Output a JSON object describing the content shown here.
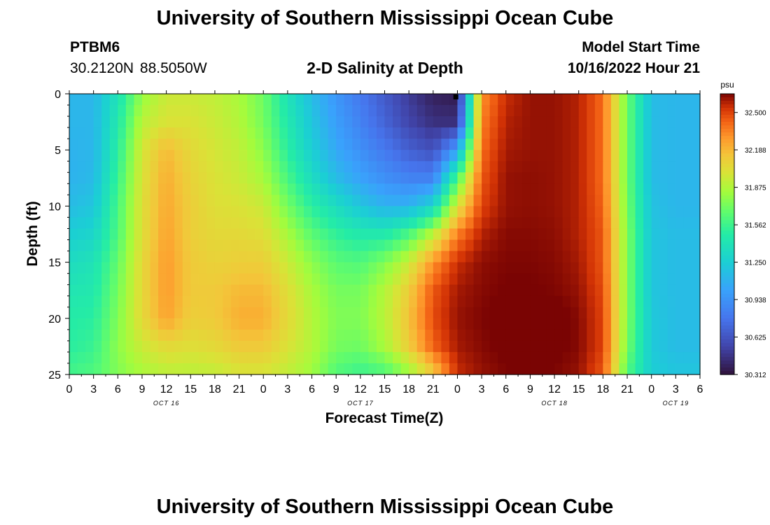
{
  "header": {
    "title": "University of Southern Mississippi Ocean Cube",
    "station_id": "PTBM6",
    "station_coords": "30.2120N  88.5050W",
    "plot_title": "2-D Salinity at Depth",
    "start_label": "Model Start Time",
    "start_value": "10/16/2022 Hour 21"
  },
  "footer": {
    "title": "University of Southern Mississippi Ocean Cube"
  },
  "chart_data": {
    "type": "heatmap",
    "title": "2-D Salinity at Depth",
    "xlabel": "Forecast Time(Z)",
    "ylabel": "Depth (ft)",
    "x_unit": "hours from 2022-10-16 00Z",
    "xlim": [
      0,
      78
    ],
    "ylim": [
      0,
      25
    ],
    "y_inverted": true,
    "x_tick_labels": [
      "0",
      "3",
      "6",
      "9",
      "12",
      "15",
      "18",
      "21",
      "0",
      "3",
      "6",
      "9",
      "12",
      "15",
      "18",
      "21",
      "0",
      "3",
      "6",
      "9",
      "12",
      "15",
      "18",
      "21",
      "0",
      "3",
      "6"
    ],
    "y_ticks": [
      0,
      5,
      10,
      15,
      20,
      25
    ],
    "date_labels": [
      {
        "text": "OCT 16",
        "hour": 12
      },
      {
        "text": "OCT 17",
        "hour": 36
      },
      {
        "text": "OCT 18",
        "hour": 60
      },
      {
        "text": "OCT 19",
        "hour": 75
      }
    ],
    "current_time_hour": 47.8,
    "colorbar": {
      "unit": "psu",
      "min": 30.312,
      "max": 32.656,
      "tick_values": [
        "32.500",
        "32.188",
        "31.875",
        "31.562",
        "31.250",
        "30.938",
        "30.625",
        "30.312"
      ],
      "colormap": "turbo"
    },
    "value_grid_desc": "salinity psu at depth rows 0,2.5,...,25 ft and hours 0,3,...,78",
    "y_samples": [
      0,
      2.5,
      5,
      7.5,
      10,
      12.5,
      15,
      17.5,
      20,
      22.5,
      25
    ],
    "x_samples": [
      0,
      3,
      6,
      9,
      12,
      15,
      18,
      21,
      24,
      27,
      30,
      33,
      36,
      39,
      42,
      45,
      48,
      51,
      54,
      57,
      60,
      63,
      66,
      69,
      72,
      75,
      78
    ],
    "values": [
      [
        31.12,
        31.12,
        31.4,
        31.8,
        31.95,
        31.95,
        31.92,
        31.85,
        31.7,
        31.4,
        31.15,
        30.95,
        30.8,
        30.65,
        30.5,
        30.38,
        30.35,
        32.3,
        32.55,
        32.62,
        32.62,
        32.58,
        32.4,
        31.7,
        31.15,
        31.12,
        31.12
      ],
      [
        31.12,
        31.12,
        31.45,
        31.9,
        32.0,
        32.0,
        31.95,
        31.88,
        31.72,
        31.45,
        31.2,
        31.0,
        30.85,
        30.7,
        30.55,
        30.45,
        30.45,
        32.35,
        32.58,
        32.62,
        32.62,
        32.58,
        32.4,
        31.7,
        31.15,
        31.12,
        31.12
      ],
      [
        31.1,
        31.12,
        31.5,
        31.98,
        32.18,
        32.05,
        31.98,
        31.92,
        31.78,
        31.5,
        31.25,
        31.05,
        30.92,
        30.8,
        30.68,
        30.6,
        31.0,
        32.4,
        32.6,
        32.62,
        32.62,
        32.58,
        32.4,
        31.7,
        31.15,
        31.12,
        31.12
      ],
      [
        31.1,
        31.14,
        31.55,
        32.0,
        32.22,
        32.08,
        32.0,
        31.95,
        31.85,
        31.6,
        31.35,
        31.15,
        31.02,
        30.92,
        30.85,
        30.85,
        31.6,
        32.45,
        32.62,
        32.63,
        32.62,
        32.58,
        32.4,
        31.7,
        31.15,
        31.12,
        31.12
      ],
      [
        31.15,
        31.2,
        31.6,
        32.02,
        32.24,
        32.1,
        32.02,
        32.0,
        31.95,
        31.72,
        31.5,
        31.35,
        31.2,
        31.1,
        31.1,
        31.3,
        32.0,
        32.5,
        32.62,
        32.63,
        32.62,
        32.58,
        32.42,
        31.72,
        31.18,
        31.12,
        31.12
      ],
      [
        31.25,
        31.3,
        31.62,
        32.02,
        32.26,
        32.1,
        32.05,
        32.05,
        32.02,
        31.85,
        31.65,
        31.52,
        31.45,
        31.45,
        31.6,
        31.9,
        32.35,
        32.58,
        32.64,
        32.64,
        32.63,
        32.58,
        32.45,
        31.75,
        31.2,
        31.15,
        31.15
      ],
      [
        31.35,
        31.4,
        31.68,
        32.05,
        32.28,
        32.12,
        32.08,
        32.1,
        32.1,
        31.95,
        31.78,
        31.65,
        31.62,
        31.75,
        31.95,
        32.3,
        32.55,
        32.63,
        32.65,
        32.65,
        32.64,
        32.6,
        32.45,
        31.75,
        31.2,
        31.15,
        31.15
      ],
      [
        31.42,
        31.45,
        31.72,
        32.05,
        32.28,
        32.12,
        32.12,
        32.18,
        32.18,
        32.02,
        31.85,
        31.72,
        31.72,
        31.88,
        32.1,
        32.45,
        32.6,
        32.64,
        32.66,
        32.66,
        32.65,
        32.62,
        32.48,
        31.75,
        31.2,
        31.15,
        31.15
      ],
      [
        31.48,
        31.5,
        31.75,
        32.05,
        32.26,
        32.1,
        32.12,
        32.22,
        32.22,
        32.05,
        31.88,
        31.75,
        31.75,
        31.9,
        32.15,
        32.48,
        32.62,
        32.65,
        32.68,
        32.69,
        32.68,
        32.64,
        32.5,
        31.75,
        31.22,
        31.15,
        31.15
      ],
      [
        31.5,
        31.55,
        31.78,
        31.95,
        32.05,
        32.02,
        32.05,
        32.12,
        32.12,
        32.0,
        31.88,
        31.72,
        31.7,
        31.85,
        32.1,
        32.42,
        32.6,
        32.64,
        32.67,
        32.68,
        32.67,
        32.64,
        32.5,
        31.72,
        31.22,
        31.15,
        31.15
      ],
      [
        31.58,
        31.62,
        31.75,
        31.85,
        31.9,
        31.9,
        31.92,
        31.98,
        31.98,
        31.92,
        31.82,
        31.62,
        31.55,
        31.6,
        31.8,
        32.1,
        32.55,
        32.62,
        32.65,
        32.66,
        32.65,
        32.62,
        32.45,
        31.62,
        31.25,
        31.2,
        31.2
      ]
    ]
  }
}
